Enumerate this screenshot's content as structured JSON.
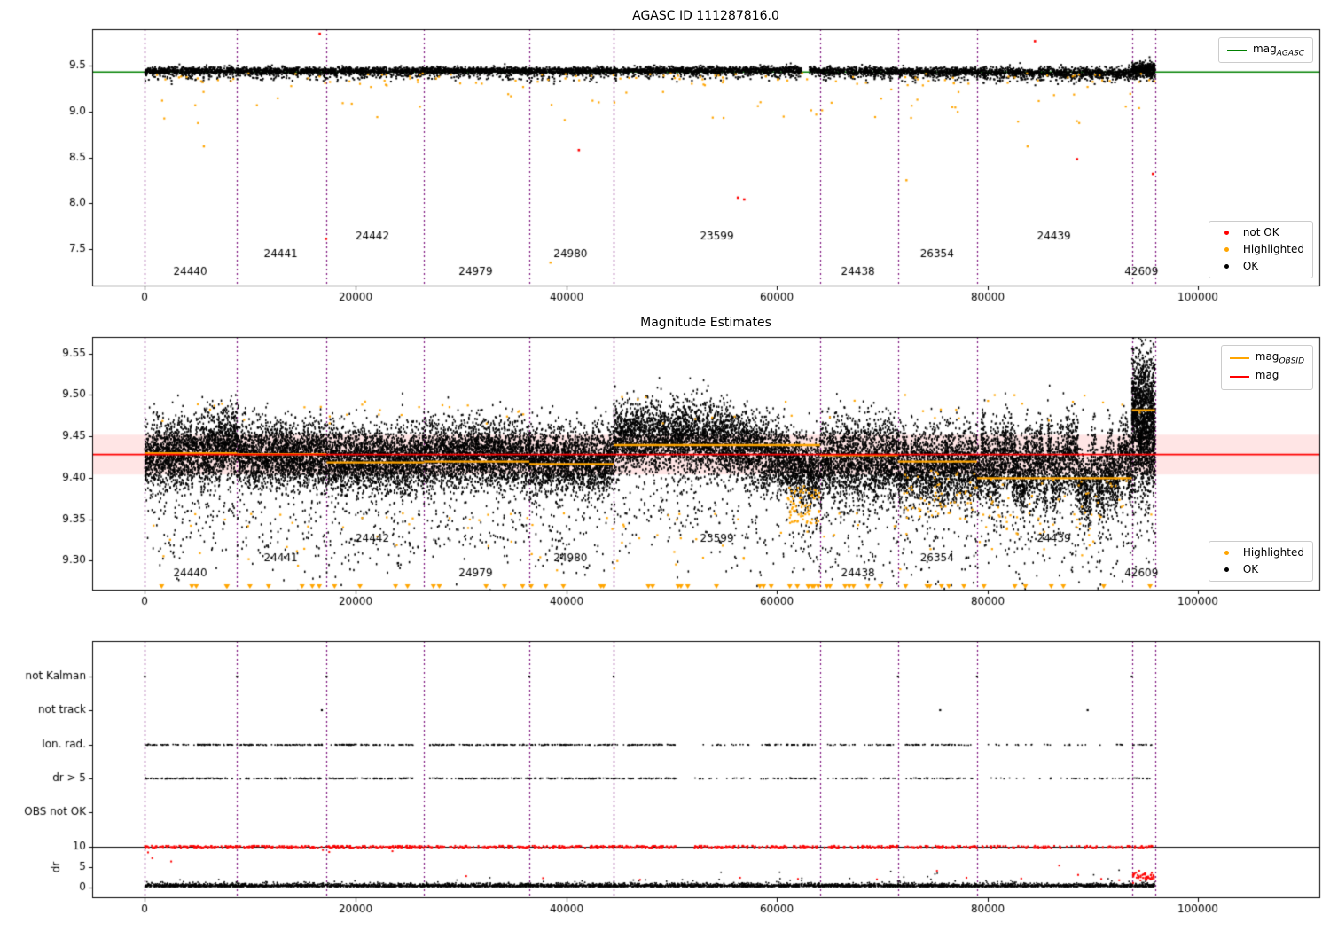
{
  "colors": {
    "ok": "#000000",
    "highlighted": "#ffa500",
    "not_ok": "#ff0000",
    "mag_agasc": "#008000",
    "mag": "#ff0000",
    "mag_obsid": "#ffa500",
    "boundary": "#7b0e7b",
    "band_fill": "rgba(255,70,70,0.14)"
  },
  "chart_data": {
    "type": "scatter",
    "xlim": [
      -5000,
      111500
    ],
    "xticks": [
      0,
      20000,
      40000,
      60000,
      80000,
      100000
    ],
    "boundaries": [
      0,
      8750,
      17250,
      26500,
      36500,
      44500,
      64100,
      71500,
      79000,
      93700,
      95900
    ],
    "obsids": [
      {
        "id": "24440",
        "start": 0,
        "end": 8750,
        "label_x": 4300,
        "label_row": 0,
        "top_center": 9.445,
        "top_spread": 0.02,
        "mid_center": 9.425,
        "mid_spread": 0.021,
        "mag_obsid": 9.43
      },
      {
        "id": "24441",
        "start": 8750,
        "end": 17250,
        "label_x": 12900,
        "label_row": 1,
        "top_center": 9.445,
        "top_spread": 0.02,
        "mid_center": 9.427,
        "mid_spread": 0.02,
        "mag_obsid": 9.429
      },
      {
        "id": "24442",
        "start": 17250,
        "end": 26500,
        "label_x": 21600,
        "label_row": 2,
        "top_center": 9.445,
        "top_spread": 0.02,
        "mid_center": 9.421,
        "mid_spread": 0.02,
        "mag_obsid": 9.419
      },
      {
        "id": "24979",
        "start": 26500,
        "end": 36500,
        "label_x": 31400,
        "label_row": 0,
        "top_center": 9.445,
        "top_spread": 0.02,
        "mid_center": 9.427,
        "mid_spread": 0.02,
        "mag_obsid": 9.42
      },
      {
        "id": "24980",
        "start": 36500,
        "end": 44500,
        "label_x": 40400,
        "label_row": 1,
        "top_center": 9.445,
        "top_spread": 0.02,
        "mid_center": 9.42,
        "mid_spread": 0.02,
        "mag_obsid": 9.417
      },
      {
        "id": "23599",
        "start": 44500,
        "end": 64100,
        "label_x": 54300,
        "label_row": 2,
        "top_center": 9.45,
        "top_spread": 0.02,
        "mid_center": 9.435,
        "mid_spread": 0.021,
        "mag_obsid": 9.44
      },
      {
        "id": "24438",
        "start": 64100,
        "end": 71500,
        "label_x": 67700,
        "label_row": 0,
        "top_center": 9.44,
        "top_spread": 0.022,
        "mid_center": 9.42,
        "mid_spread": 0.026,
        "mag_obsid": 9.428
      },
      {
        "id": "26354",
        "start": 71500,
        "end": 79000,
        "label_x": 75200,
        "label_row": 1,
        "top_center": 9.435,
        "top_spread": 0.022,
        "mid_center": 9.414,
        "mid_spread": 0.023,
        "mag_obsid": 9.42
      },
      {
        "id": "24439",
        "start": 79000,
        "end": 93700,
        "label_x": 86300,
        "label_row": 2,
        "top_center": 9.425,
        "top_spread": 0.03,
        "mid_center": 9.408,
        "mid_spread": 0.024,
        "mag_obsid": 9.4
      },
      {
        "id": "42609",
        "start": 93700,
        "end": 95900,
        "label_x": 94600,
        "label_row": 0,
        "top_center": 9.46,
        "top_spread": 0.035,
        "mid_center": 9.468,
        "mid_spread": 0.042,
        "mag_obsid": 9.482,
        "dense": 3
      }
    ],
    "top": {
      "title": "AGASC ID 111287816.0",
      "ylim": [
        7.1,
        9.9
      ],
      "yticks": [
        7.5,
        8.0,
        8.5,
        9.0,
        9.5
      ],
      "mag_agasc": 9.432,
      "gap": [
        62300,
        63100
      ],
      "label_rows": [
        7.245,
        7.44,
        7.63
      ],
      "red_points": [
        [
          16600,
          9.85
        ],
        [
          17200,
          7.61
        ],
        [
          41200,
          8.58
        ],
        [
          56300,
          8.06
        ],
        [
          56900,
          8.04
        ],
        [
          84500,
          9.77
        ],
        [
          88500,
          8.48
        ],
        [
          95700,
          8.32
        ]
      ],
      "orange_deep": [
        [
          38500,
          7.35
        ],
        [
          5600,
          8.62
        ],
        [
          72300,
          8.25
        ],
        [
          83800,
          8.62
        ]
      ],
      "legend_line": {
        "text": "mag",
        "sub": "AGASC"
      },
      "legend_points": [
        {
          "label": "not OK"
        },
        {
          "label": "Highlighted"
        },
        {
          "label": "OK"
        }
      ]
    },
    "middle": {
      "title": "Magnitude Estimates",
      "ylim": [
        9.265,
        9.57
      ],
      "yticks": [
        9.3,
        9.35,
        9.4,
        9.45,
        9.5,
        9.55
      ],
      "mag": 9.428,
      "band": [
        9.404,
        9.452
      ],
      "label_rows": [
        9.284,
        9.303,
        9.326
      ],
      "triangles_n": 60,
      "orange_clusters": [
        {
          "start": 61000,
          "end": 64100,
          "n": 80,
          "y0": 9.345,
          "y1": 9.39
        },
        {
          "start": 72000,
          "end": 79000,
          "n": 60,
          "y0": 9.35,
          "y1": 9.41
        },
        {
          "start": 79500,
          "end": 93700,
          "n": 50,
          "y0": 9.33,
          "y1": 9.4
        }
      ],
      "legend_lines": [
        {
          "text": "mag",
          "sub": "OBSID"
        },
        {
          "text": "mag",
          "sub": ""
        }
      ],
      "legend_points": [
        {
          "label": "Highlighted"
        },
        {
          "label": "OK"
        }
      ]
    },
    "bottom": {
      "rows": [
        "not Kalman",
        "not track",
        "Ion. rad.",
        "dr > 5",
        "OBS not OK"
      ],
      "dr_label": "dr",
      "dr_ticks": [
        0,
        5,
        10
      ],
      "dr_cap": 10,
      "ion_rad_segments": [
        [
          0,
          17200,
          0.95
        ],
        [
          17500,
          25500,
          0.95
        ],
        [
          27000,
          44400,
          0.9
        ],
        [
          44600,
          50500,
          0.85
        ],
        [
          52200,
          57500,
          0.3
        ],
        [
          58200,
          64000,
          0.8
        ],
        [
          64800,
          71200,
          0.5
        ],
        [
          72200,
          78800,
          0.7
        ],
        [
          80000,
          93500,
          0.22
        ],
        [
          93800,
          95800,
          0.6
        ]
      ],
      "dr5_segments": [
        [
          0,
          17200,
          0.95
        ],
        [
          17500,
          25500,
          0.95
        ],
        [
          27000,
          50500,
          0.9
        ],
        [
          52200,
          57500,
          0.3
        ],
        [
          58200,
          64000,
          0.65
        ],
        [
          64800,
          71200,
          0.5
        ],
        [
          72200,
          78800,
          0.6
        ],
        [
          80000,
          93500,
          0.28
        ],
        [
          93800,
          95800,
          0.7
        ]
      ],
      "dr_cap_segments": [
        [
          0,
          50500,
          0.95
        ],
        [
          52000,
          64000,
          0.8
        ],
        [
          64500,
          71500,
          0.8
        ],
        [
          72000,
          79000,
          0.75
        ],
        [
          79500,
          93700,
          0.5
        ],
        [
          93800,
          95800,
          0.85
        ]
      ],
      "not_kalman_x": [
        0,
        8750,
        17250,
        36500,
        44500,
        71500,
        79000,
        93700
      ],
      "not_track_x": [
        16800,
        75500,
        89500
      ],
      "dr_red_sparse": [
        [
          300,
          8.6
        ],
        [
          700,
          7.2
        ],
        [
          2500,
          6.4
        ],
        [
          16900,
          9.2
        ],
        [
          17500,
          8.7
        ],
        [
          23500,
          8.9
        ],
        [
          30500,
          2.8
        ],
        [
          37800,
          2.3
        ],
        [
          47000,
          1.9
        ],
        [
          56500,
          2.4
        ],
        [
          62000,
          2.1
        ],
        [
          69500,
          2.0
        ],
        [
          75200,
          4.1
        ],
        [
          78000,
          2.4
        ],
        [
          83200,
          2.2
        ],
        [
          86800,
          5.4
        ],
        [
          88600,
          3.1
        ],
        [
          90800,
          2.1
        ],
        [
          92500,
          1.8
        ]
      ],
      "end_cluster": {
        "start": 93800,
        "end": 95800,
        "center": 2.8,
        "spread": 0.5,
        "n": 45
      }
    }
  }
}
